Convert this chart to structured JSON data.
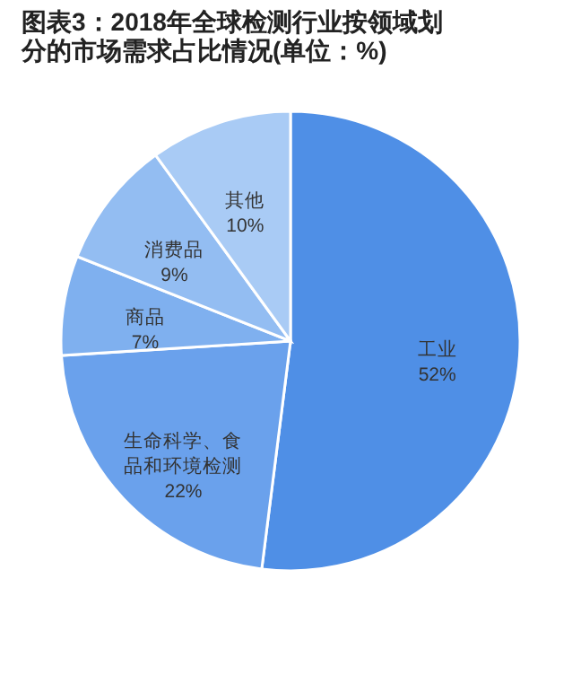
{
  "chart_data": {
    "type": "pie",
    "title": "图表3：2018年全球检测行业按领域划分的市场需求占比情况(单位：%)",
    "categories": [
      "工业",
      "生命科学、食品和环境检测",
      "商品",
      "消费品",
      "其他"
    ],
    "values": [
      52,
      22,
      7,
      9,
      10
    ],
    "value_labels": [
      "52%",
      "22%",
      "7%",
      "9%",
      "10%"
    ],
    "colors": [
      "#4f8fe6",
      "#6aa1ec",
      "#7fb0ef",
      "#93bdf2",
      "#a9cbf5"
    ],
    "legend": false
  }
}
